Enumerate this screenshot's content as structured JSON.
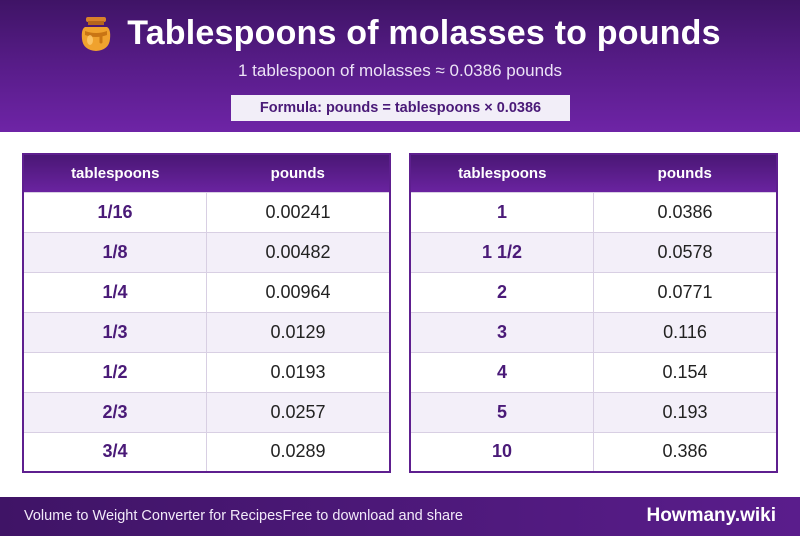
{
  "header": {
    "title": "Tablespoons of molasses to pounds",
    "subtitle": "1 tablespoon of molasses ≈ 0.0386 pounds",
    "formula": "Formula: pounds = tablespoons × 0.0386",
    "icon": "honey-jar-icon"
  },
  "tables": {
    "left": {
      "headers": [
        "tablespoons",
        "pounds"
      ],
      "rows": [
        [
          "1/16",
          "0.00241"
        ],
        [
          "1/8",
          "0.00482"
        ],
        [
          "1/4",
          "0.00964"
        ],
        [
          "1/3",
          "0.0129"
        ],
        [
          "1/2",
          "0.0193"
        ],
        [
          "2/3",
          "0.0257"
        ],
        [
          "3/4",
          "0.0289"
        ]
      ]
    },
    "right": {
      "headers": [
        "tablespoons",
        "pounds"
      ],
      "rows": [
        [
          "1",
          "0.0386"
        ],
        [
          "1 1/2",
          "0.0578"
        ],
        [
          "2",
          "0.0771"
        ],
        [
          "3",
          "0.116"
        ],
        [
          "4",
          "0.154"
        ],
        [
          "5",
          "0.193"
        ],
        [
          "10",
          "0.386"
        ]
      ]
    }
  },
  "footer": {
    "left": "Volume to Weight Converter for Recipes",
    "middle": "Free to download and share",
    "brand": "Howmany.wiki"
  },
  "colors": {
    "accent": "#5a1d8c",
    "row_alt": "#f3eff9",
    "value_text": "#4a1a78"
  }
}
